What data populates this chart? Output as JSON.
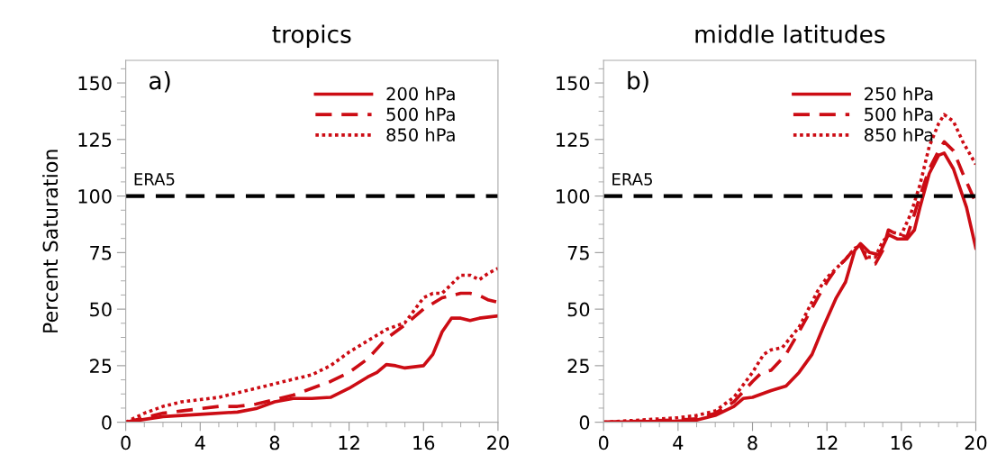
{
  "chart_data": [
    {
      "type": "line",
      "title": "tropics",
      "ylabel": "Percent Saturation",
      "annotations": [
        "a)"
      ],
      "xlim": [
        0,
        20
      ],
      "xticks": [
        0,
        4,
        8,
        12,
        16,
        20
      ],
      "ylim": [
        0,
        160
      ],
      "yticks": [
        0,
        25,
        50,
        75,
        100,
        125,
        150
      ],
      "ref_lines": [
        {
          "axis": "y",
          "value": 100,
          "label": "ERA5",
          "color": "#000000",
          "line_style": "dashed"
        }
      ],
      "legend": "top right",
      "grid": false,
      "series": [
        {
          "name": "200 hPa",
          "color": "#cc0c14",
          "line_style": "solid",
          "x": [
            0,
            2,
            4,
            6,
            7,
            8,
            9,
            10,
            11,
            12,
            13,
            13.5,
            14,
            14.5,
            15,
            15.5,
            16,
            16.5,
            17,
            17.5,
            18,
            18.5,
            19,
            20
          ],
          "values": [
            0,
            2.5,
            3.5,
            4.5,
            6,
            9,
            10.5,
            10.5,
            11,
            15,
            20,
            22,
            25.5,
            25,
            24,
            24.5,
            25,
            30,
            40,
            46,
            46,
            45,
            46,
            47
          ]
        },
        {
          "name": "500 hPa",
          "color": "#cc0c14",
          "line_style": "dashed",
          "x": [
            0,
            1,
            2,
            3,
            4,
            5,
            6,
            7,
            8,
            9,
            10,
            11,
            12,
            13,
            14,
            15,
            16,
            17,
            18,
            18.5,
            19,
            19.5,
            20
          ],
          "values": [
            0,
            2,
            4,
            5,
            6,
            7,
            7,
            8,
            10,
            12,
            15,
            18,
            22,
            28,
            37,
            43,
            50,
            55,
            57,
            57,
            56,
            54,
            53
          ]
        },
        {
          "name": "850 hPa",
          "color": "#cc0c14",
          "line_style": "dotted",
          "x": [
            0,
            1,
            2,
            3,
            4,
            5,
            6,
            7,
            8,
            9,
            10,
            11,
            12,
            13,
            14,
            15,
            16,
            16.5,
            17,
            18,
            18.5,
            19,
            19.5,
            20
          ],
          "values": [
            0,
            4,
            7,
            9,
            10,
            11,
            13,
            15,
            17,
            19,
            21,
            25,
            31,
            36,
            41,
            44,
            55,
            57,
            57,
            65,
            65,
            63,
            66,
            68
          ]
        }
      ]
    },
    {
      "type": "line",
      "title": "middle latitudes",
      "annotations": [
        "b)"
      ],
      "xlim": [
        0,
        20
      ],
      "xticks": [
        0,
        4,
        8,
        12,
        16,
        20
      ],
      "ylim": [
        0,
        160
      ],
      "yticks": [
        0,
        25,
        50,
        75,
        100,
        125,
        150
      ],
      "ref_lines": [
        {
          "axis": "y",
          "value": 100,
          "label": "ERA5",
          "color": "#000000",
          "line_style": "dashed"
        }
      ],
      "legend": "top right",
      "grid": false,
      "series": [
        {
          "name": "250 hPa",
          "color": "#cc0c14",
          "line_style": "solid",
          "x": [
            0,
            4,
            5,
            6,
            7,
            7.5,
            8,
            9,
            9.8,
            10.5,
            11.2,
            11.8,
            12.5,
            13,
            13.5,
            13.8,
            14.3,
            14.8,
            15.3,
            15.8,
            16.3,
            16.7,
            17,
            17.5,
            18,
            18.3,
            18.8,
            19.5,
            20
          ],
          "values": [
            0,
            0.5,
            1,
            3,
            7,
            10.5,
            11,
            14,
            16,
            22,
            30,
            42,
            55,
            62,
            76,
            79,
            75,
            74,
            83,
            81,
            81,
            85,
            95,
            110,
            118,
            119,
            112,
            95,
            77
          ]
        },
        {
          "name": "500 hPa",
          "color": "#cc0c14",
          "line_style": "dashed",
          "x": [
            0,
            4,
            5,
            6,
            7,
            8,
            8.5,
            9,
            9.8,
            10.5,
            11.5,
            12,
            12.5,
            13,
            13.5,
            13.8,
            14.2,
            14.6,
            15,
            15.3,
            15.8,
            16.3,
            16.7,
            17,
            17.5,
            18,
            18.3,
            18.8,
            19.3,
            20
          ],
          "values": [
            0,
            1,
            1.5,
            4,
            9,
            18,
            22,
            23,
            30,
            40,
            55,
            62,
            68,
            72,
            77,
            78,
            71,
            70,
            76,
            85,
            83,
            82,
            92,
            100,
            112,
            120,
            124,
            120,
            110,
            97
          ]
        },
        {
          "name": "850 hPa",
          "color": "#cc0c14",
          "line_style": "dotted",
          "x": [
            0,
            4,
            5,
            6,
            7,
            8,
            8.6,
            9,
            9.6,
            10.5,
            11.5,
            12,
            13,
            13.5,
            13.8,
            14.2,
            14.6,
            15,
            15.5,
            16,
            16.5,
            17,
            17.5,
            18,
            18.3,
            18.8,
            19.3,
            20
          ],
          "values": [
            0,
            2,
            3,
            5,
            11,
            22,
            30,
            32,
            33,
            42,
            58,
            64,
            72,
            77,
            78,
            73,
            73,
            80,
            84,
            83,
            92,
            105,
            122,
            132,
            136,
            133,
            124,
            114
          ]
        }
      ]
    }
  ]
}
